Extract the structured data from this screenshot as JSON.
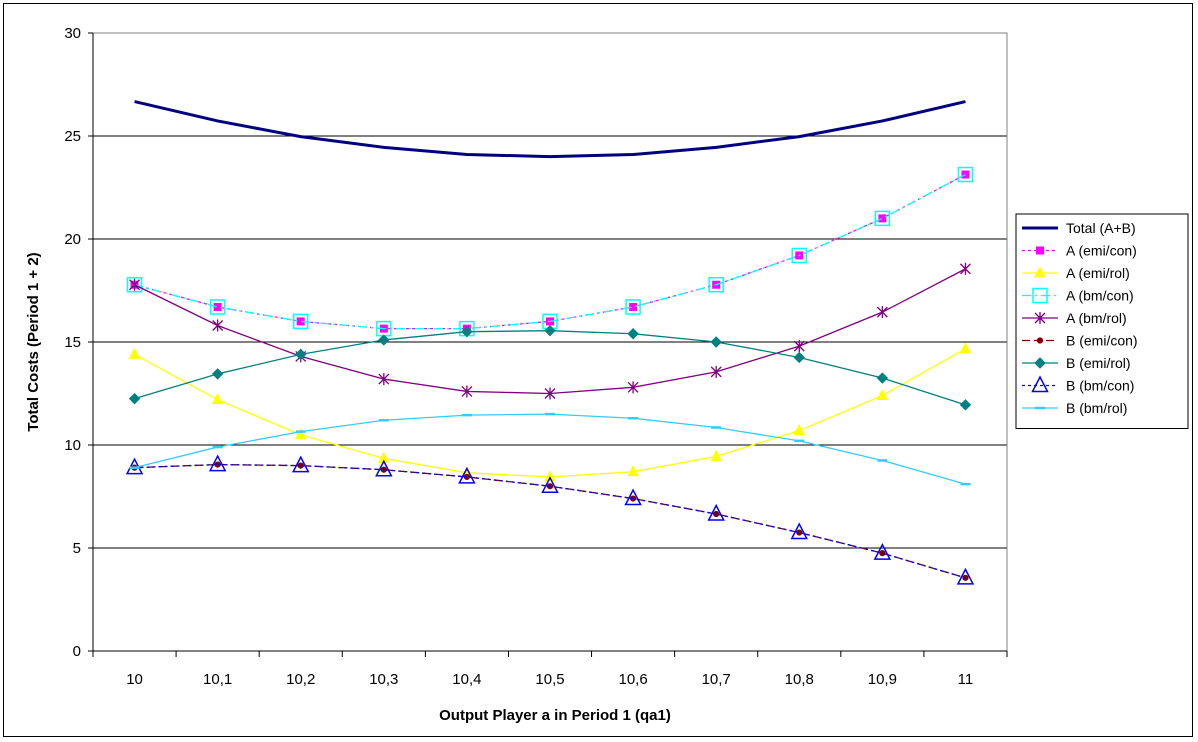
{
  "chart_data": {
    "type": "line",
    "title": "",
    "xlabel": "Output Player a in Period 1 (qa1)",
    "ylabel": "Total Costs (Period 1 + 2)",
    "categories": [
      "10",
      "10,1",
      "10,2",
      "10,3",
      "10,4",
      "10,5",
      "10,6",
      "10,7",
      "10,8",
      "10,9",
      "11"
    ],
    "ylim": [
      0,
      30
    ],
    "yticks": [
      "0",
      "5",
      "10",
      "15",
      "20",
      "25",
      "30"
    ],
    "grid": "horizontal",
    "legend_position": "right",
    "series": [
      {
        "name": "Total (A+B)",
        "color": "#000080",
        "dash": "solid",
        "marker": "none",
        "values": [
          26.67,
          25.73,
          24.97,
          24.45,
          24.1,
          24.0,
          24.1,
          24.45,
          24.97,
          25.73,
          26.67
        ]
      },
      {
        "name": "A (emi/con)",
        "color": "#ff00ff",
        "dash": "dot",
        "marker": "square",
        "values": [
          17.78,
          16.7,
          16.0,
          15.65,
          15.65,
          16.0,
          16.7,
          17.78,
          19.2,
          21.0,
          23.13
        ]
      },
      {
        "name": "A (emi/rol)",
        "color": "#ffff00",
        "dash": "solid",
        "marker": "triangle",
        "values": [
          14.4,
          12.2,
          10.5,
          9.35,
          8.65,
          8.45,
          8.7,
          9.45,
          10.7,
          12.4,
          14.67
        ]
      },
      {
        "name": "A (bm/con)",
        "color": "#00ffff",
        "dash": "dashdot",
        "marker": "open-square",
        "values": [
          17.78,
          16.7,
          16.0,
          15.65,
          15.65,
          16.0,
          16.7,
          17.78,
          19.2,
          21.0,
          23.13
        ]
      },
      {
        "name": "A (bm/rol)",
        "color": "#800080",
        "dash": "solid",
        "marker": "asterisk",
        "values": [
          17.78,
          15.8,
          14.3,
          13.2,
          12.6,
          12.5,
          12.8,
          13.55,
          14.8,
          16.45,
          18.55
        ]
      },
      {
        "name": "B (emi/con)",
        "color": "#800000",
        "dash": "dash",
        "marker": "circle",
        "values": [
          8.9,
          9.05,
          9.0,
          8.8,
          8.45,
          8.0,
          7.4,
          6.65,
          5.75,
          4.75,
          3.55
        ]
      },
      {
        "name": "B (emi/rol)",
        "color": "#008080",
        "dash": "solid",
        "marker": "diamond",
        "values": [
          12.25,
          13.45,
          14.4,
          15.1,
          15.5,
          15.55,
          15.4,
          15.0,
          14.25,
          13.25,
          11.95
        ]
      },
      {
        "name": "B (bm/con)",
        "color": "#0000ff",
        "dash": "dot",
        "marker": "open-triangle",
        "values": [
          8.9,
          9.05,
          9.0,
          8.8,
          8.45,
          8.0,
          7.4,
          6.65,
          5.75,
          4.75,
          3.55
        ]
      },
      {
        "name": "B (bm/rol)",
        "color": "#33ccff",
        "dash": "solid",
        "marker": "dash",
        "values": [
          8.9,
          9.9,
          10.65,
          11.2,
          11.45,
          11.5,
          11.3,
          10.85,
          10.2,
          9.25,
          8.1
        ]
      }
    ]
  }
}
